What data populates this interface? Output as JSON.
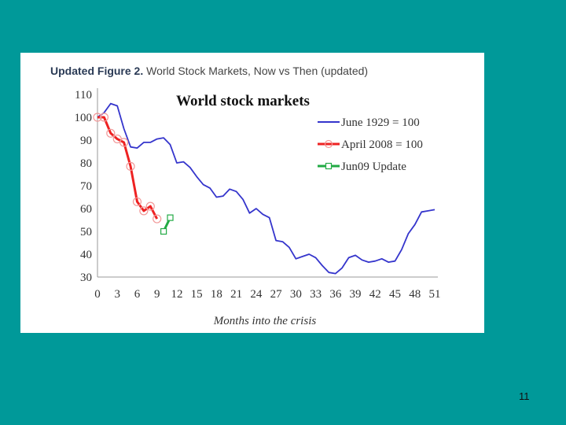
{
  "figure": {
    "caption_bold": "Updated Figure 2.",
    "caption_rest": "World Stock Markets, Now vs Then (updated)"
  },
  "slide": {
    "number": "11"
  },
  "chart_data": {
    "type": "line",
    "title": "World stock markets",
    "xlabel": "Months into the crisis",
    "ylabel": "",
    "xlim": [
      0,
      51
    ],
    "ylim": [
      30,
      110
    ],
    "xticks": [
      0,
      3,
      6,
      9,
      12,
      15,
      18,
      21,
      24,
      27,
      30,
      33,
      36,
      39,
      42,
      45,
      48,
      51
    ],
    "yticks": [
      30,
      40,
      50,
      60,
      70,
      80,
      90,
      100,
      110
    ],
    "grid": false,
    "legend_position": "top-right",
    "series": [
      {
        "name": "June 1929 = 100",
        "color": "#3535cc",
        "marker": "none",
        "x": [
          0,
          1,
          2,
          3,
          4,
          5,
          6,
          7,
          8,
          9,
          10,
          11,
          12,
          13,
          14,
          15,
          16,
          17,
          18,
          19,
          20,
          21,
          22,
          23,
          24,
          25,
          26,
          27,
          28,
          29,
          30,
          31,
          32,
          33,
          34,
          35,
          36,
          37,
          38,
          39,
          40,
          41,
          42,
          43,
          44,
          45,
          46,
          47,
          48,
          49,
          50,
          51
        ],
        "values": [
          100,
          102,
          106,
          105,
          95,
          87,
          86.5,
          89,
          89,
          90.5,
          91,
          88,
          80,
          80.5,
          78,
          74,
          70.5,
          69,
          65,
          65.5,
          68.5,
          67.5,
          64,
          58,
          60,
          57.5,
          56,
          46,
          45.5,
          43,
          38,
          39,
          40,
          38.5,
          35,
          32,
          31.5,
          34,
          38.5,
          39.5,
          37.5,
          36.5,
          37,
          38,
          36.5,
          37,
          42,
          49,
          53,
          58.5,
          59,
          59.5
        ]
      },
      {
        "name": "April 2008 = 100",
        "color": "#ee2222",
        "marker": "circle",
        "x": [
          0,
          1,
          2,
          3,
          4,
          5,
          6,
          7,
          8,
          9
        ],
        "values": [
          100,
          100,
          93,
          90.5,
          89,
          78.5,
          63,
          59,
          61,
          55.5
        ]
      },
      {
        "name": "Jun09 Update",
        "color": "#22aa44",
        "marker": "square",
        "x": [
          10,
          11
        ],
        "values": [
          50,
          56
        ]
      }
    ]
  }
}
